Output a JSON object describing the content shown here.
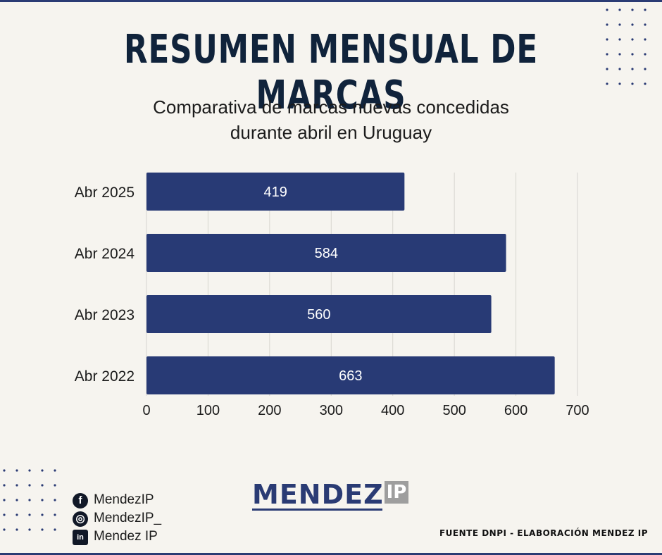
{
  "header": {
    "title": "RESUMEN MENSUAL DE MARCAS",
    "subtitle_line1": "Comparativa de marcas nuevas concedidas",
    "subtitle_line2": "durante abril en Uruguay"
  },
  "chart_data": {
    "type": "bar",
    "orientation": "horizontal",
    "title": "",
    "xlabel": "",
    "ylabel": "",
    "categories": [
      "Abr 2025",
      "Abr 2024",
      "Abr 2023",
      "Abr 2022"
    ],
    "values": [
      419,
      584,
      560,
      663
    ],
    "xlim": [
      0,
      700
    ],
    "xticks": [
      0,
      100,
      200,
      300,
      400,
      500,
      600,
      700
    ],
    "grid": true,
    "data_labels": "inside",
    "bar_color": "#283a75"
  },
  "logo": {
    "main": "MENDEZ",
    "suffix": "IP"
  },
  "social": [
    {
      "icon": "facebook-icon",
      "glyph": "f",
      "label": "MendezIP"
    },
    {
      "icon": "instagram-icon",
      "glyph": "◎",
      "label": "MendezIP_"
    },
    {
      "icon": "linkedin-icon",
      "glyph": "in",
      "label": "Mendez IP"
    }
  ],
  "footer": {
    "source": "FUENTE DNPI - ELABORACIÓN MENDEZ IP"
  },
  "colors": {
    "accent": "#283a75",
    "title": "#10233b",
    "background": "#f6f4ef"
  }
}
